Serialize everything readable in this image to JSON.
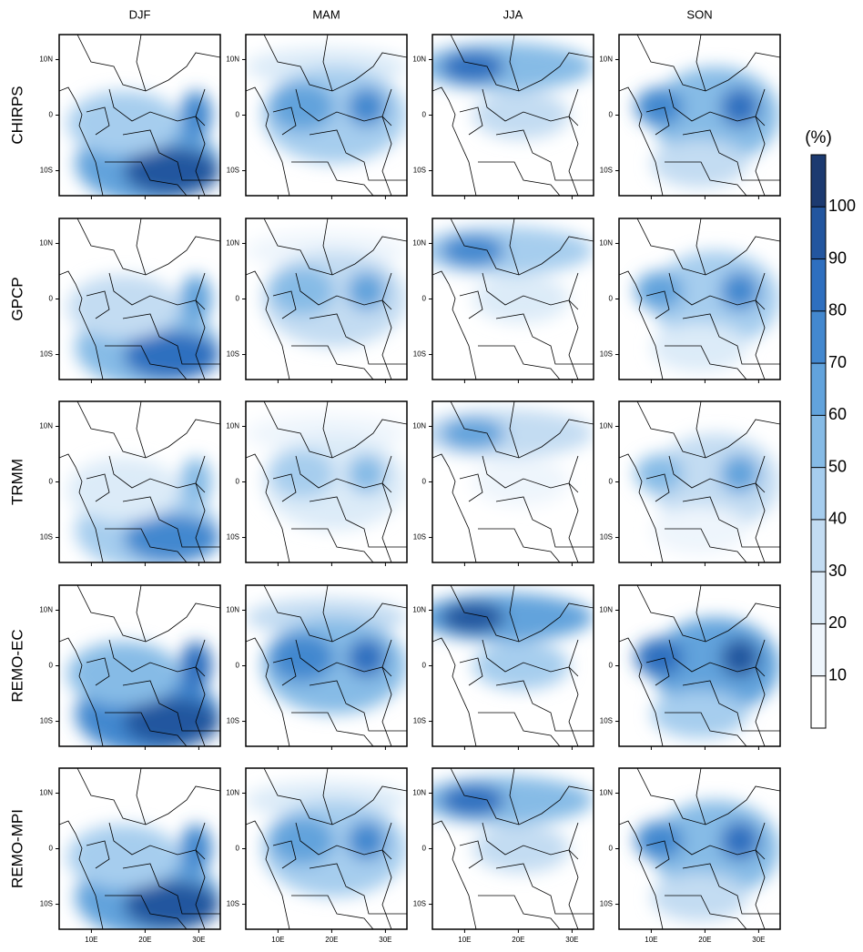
{
  "map_grid": {
    "columns": [
      "DJF",
      "MAM",
      "JJA",
      "SON"
    ],
    "rows": [
      "CHIRPS",
      "GPCP",
      "TRMM",
      "REMO-EC",
      "REMO-MPI"
    ],
    "lat_lim": [
      -14.5,
      14.5
    ],
    "lat_ticks": [
      {
        "value": 10,
        "label": "10N"
      },
      {
        "value": 0,
        "label": "0"
      },
      {
        "value": -10,
        "label": "10S"
      }
    ],
    "lon_lim": [
      4,
      34
    ],
    "lon_ticks": [
      {
        "value": 10,
        "label": "10E"
      },
      {
        "value": 20,
        "label": "20E"
      },
      {
        "value": 30,
        "label": "30E"
      }
    ]
  },
  "colorbar": {
    "title": "(%)",
    "lim": [
      0,
      110
    ],
    "ticks": [
      10,
      20,
      30,
      40,
      50,
      60,
      70,
      80,
      90,
      100
    ],
    "colors": [
      "#ffffff",
      "#eef5fc",
      "#dcebf8",
      "#c3dcf2",
      "#a6cdee",
      "#86bbe6",
      "#62a3dc",
      "#4388cf",
      "#2e6fbf",
      "#23569f",
      "#1c3a70"
    ]
  }
}
